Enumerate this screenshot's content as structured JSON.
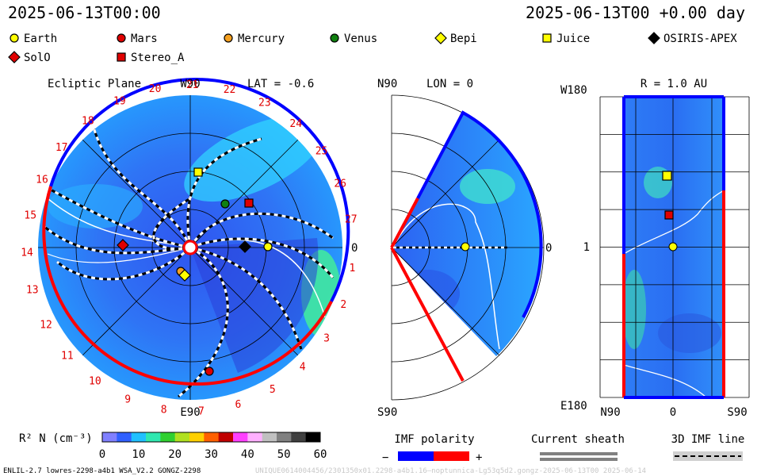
{
  "header": {
    "datetime": "2025-06-13T00:00",
    "datetime_offset": "2025-06-13T00 +0.00 day"
  },
  "legend": [
    {
      "name": "Earth",
      "shape": "circle",
      "color": "#ffff00"
    },
    {
      "name": "Mars",
      "shape": "circle",
      "color": "#e00000"
    },
    {
      "name": "Mercury",
      "shape": "circle",
      "color": "#f5a020"
    },
    {
      "name": "Venus",
      "shape": "circle",
      "color": "#108010"
    },
    {
      "name": "Bepi",
      "shape": "diamond",
      "color": "#ffff00"
    },
    {
      "name": "Juice",
      "shape": "square",
      "color": "#ffff00"
    },
    {
      "name": "OSIRIS-APEX",
      "shape": "diamond",
      "color": "#000000"
    },
    {
      "name": "SolO",
      "shape": "diamond",
      "color": "#e00000"
    },
    {
      "name": "Stereo_A",
      "shape": "square",
      "color": "#e00000"
    }
  ],
  "panels": {
    "ecliptic": {
      "title": "Ecliptic Plane",
      "top_label": "W90",
      "bottom_label": "E90",
      "right_label": "0",
      "lat_label": "LAT = -0.6",
      "carrington_ticks": [
        "1",
        "2",
        "3",
        "4",
        "5",
        "6",
        "7",
        "8",
        "9",
        "10",
        "11",
        "12",
        "13",
        "14",
        "15",
        "16",
        "17",
        "18",
        "19",
        "20",
        "21",
        "22",
        "23",
        "24",
        "25",
        "26",
        "27"
      ]
    },
    "meridional": {
      "top_label": "N90",
      "bottom_label": "S90",
      "right_label": "0",
      "lon_label": "LON = 0"
    },
    "map": {
      "title": "R = 1.0 AU",
      "top_label": "W180",
      "bottom_label": "E180",
      "mid_label": "1",
      "xlabels": [
        "N90",
        "0",
        "S90"
      ]
    }
  },
  "colorbar": {
    "label": "R² N (cm⁻³)",
    "ticks": [
      "0",
      "10",
      "20",
      "30",
      "40",
      "50",
      "60"
    ],
    "colors": [
      "#8080ff",
      "#3060ff",
      "#20c0ff",
      "#30e8b0",
      "#30d030",
      "#b0e020",
      "#ffd000",
      "#ff6000",
      "#c00000",
      "#ff40ff",
      "#ffb0ff",
      "#c0c0c0",
      "#808080",
      "#404040",
      "#000000"
    ]
  },
  "imf_polarity": {
    "title": "IMF polarity",
    "minus": "−",
    "plus": "+",
    "neg_color": "#0000ff",
    "pos_color": "#ff0000"
  },
  "current_sheath": {
    "title": "Current sheath"
  },
  "imf_line": {
    "title": "3D IMF line"
  },
  "footer": {
    "left": "ENLIL-2.7 lowres-2298-a4b1 WSA_V2.2 GONGZ-2298",
    "right": "UNIQUE0614004456/2301350x01.2298-a4b1.16—noptunnica-Lg53q5d2.gongz-2025-06-13T00 2025-06-14"
  }
}
